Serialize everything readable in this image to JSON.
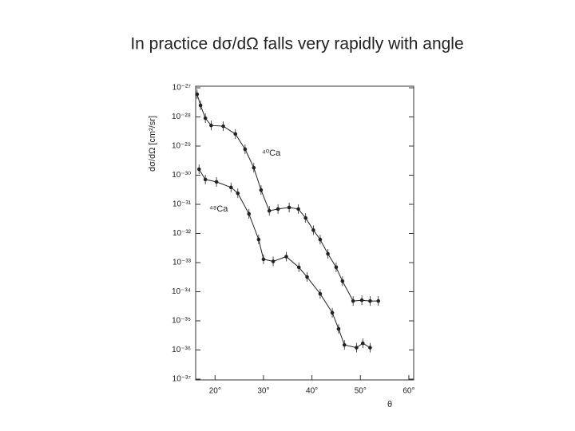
{
  "chart_data": {
    "type": "scatter",
    "title": "In practice dσ/dΩ falls very rapidly with angle",
    "x_label": "θ",
    "y_label": "dσ/dΩ [cm²/sr]",
    "log_y": true,
    "xlim": [
      16,
      61
    ],
    "ylim": [
      1e-37,
      1e-27
    ],
    "xticks": [
      {
        "value": 20,
        "label": "20°"
      },
      {
        "value": 30,
        "label": "30°"
      },
      {
        "value": 40,
        "label": "40°"
      },
      {
        "value": 50,
        "label": "50°"
      },
      {
        "value": 60,
        "label": "60°"
      }
    ],
    "yticks": [
      {
        "value": 1e-27,
        "label": "10⁻²⁷"
      },
      {
        "value": 1e-28,
        "label": "10⁻²⁸"
      },
      {
        "value": 1e-29,
        "label": "10⁻²⁹"
      },
      {
        "value": 1e-30,
        "label": "10⁻³⁰"
      },
      {
        "value": 1e-31,
        "label": "10⁻³¹"
      },
      {
        "value": 1e-32,
        "label": "10⁻³²"
      },
      {
        "value": 1e-33,
        "label": "10⁻³³"
      },
      {
        "value": 1e-34,
        "label": "10⁻³⁴"
      },
      {
        "value": 1e-35,
        "label": "10⁻³⁵"
      },
      {
        "value": 1e-36,
        "label": "10⁻³⁶"
      },
      {
        "value": 1e-37,
        "label": "10⁻³⁷"
      }
    ],
    "series": [
      {
        "name": "⁴⁰Ca",
        "color": "#222222",
        "x": [
          16.3,
          17.0,
          18.0,
          19.2,
          21.7,
          24.2,
          26.2,
          28.0,
          29.5,
          31.2,
          33.0,
          35.3,
          37.2,
          38.7,
          40.3,
          41.7,
          43.3,
          45.0,
          46.3,
          48.5,
          50.3,
          52.0,
          53.7
        ],
        "values": [
          6e-28,
          2.5e-28,
          9.1e-29,
          5.1e-29,
          4.8e-29,
          2.6e-29,
          7.8e-30,
          1.8e-30,
          3.1e-31,
          6e-32,
          6.9e-32,
          7.8e-32,
          6.9e-32,
          3.4e-32,
          1.3e-32,
          6.2e-33,
          2e-33,
          6.9e-34,
          2.3e-34,
          4.8e-35,
          5.1e-35,
          4.8e-35,
          4.8e-35
        ]
      },
      {
        "name": "⁴⁸Ca",
        "color": "#222222",
        "x": [
          16.7,
          18.0,
          20.3,
          23.3,
          24.7,
          27.0,
          29.0,
          30.0,
          32.0,
          34.7,
          37.3,
          39.0,
          41.7,
          44.2,
          45.5,
          46.7,
          49.2,
          50.5,
          52.0
        ],
        "values": [
          1.6e-30,
          7.1e-31,
          5.9e-31,
          3.8e-31,
          2.4e-31,
          4.7e-32,
          6.2e-33,
          1.3e-33,
          1.1e-33,
          1.6e-33,
          6.9e-34,
          3.2e-34,
          8.5e-35,
          1.9e-35,
          5.3e-36,
          1.5e-36,
          1.2e-36,
          1.7e-36,
          1.2e-36
        ]
      }
    ]
  }
}
